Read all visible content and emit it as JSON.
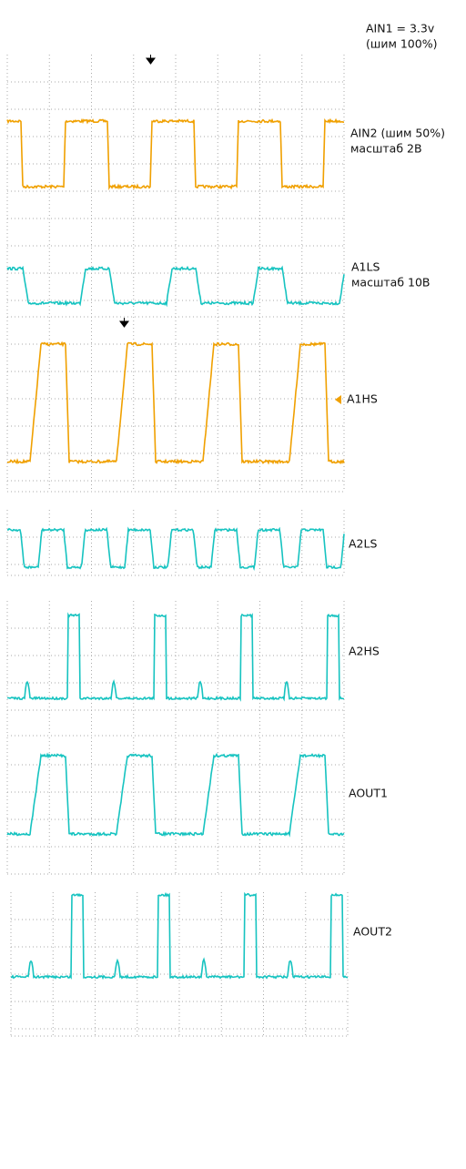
{
  "labels": {
    "ain1_value": "AIN1 = 3.3v",
    "ain1_pwm": "(шим 100%)",
    "ain2": "AIN2 (шим 50%)",
    "ain2_scale": "масштаб 2В",
    "a1ls": "A1LS",
    "a1ls_scale": "масштаб 10В",
    "a1hs": "A1HS",
    "a2ls": "A2LS",
    "a2hs": "A2HS",
    "aout1": "AOUT1",
    "aout2": "AOUT2"
  }
}
